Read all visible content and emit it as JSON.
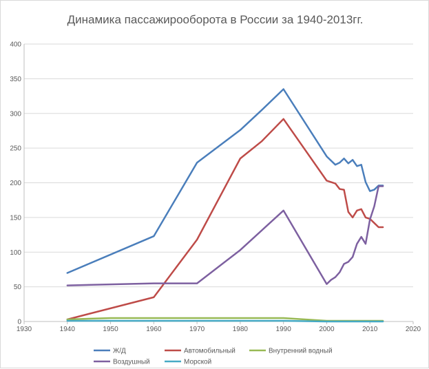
{
  "chart_data": {
    "type": "line",
    "title": "Динамика пассажирооборота в России за 1940-2013гг.",
    "xlabel": "",
    "ylabel": "",
    "xlim": [
      1930,
      2020
    ],
    "ylim": [
      0,
      400
    ],
    "x_ticks": [
      1930,
      1940,
      1950,
      1960,
      1970,
      1980,
      1990,
      2000,
      2010,
      2020
    ],
    "y_ticks": [
      0,
      50,
      100,
      150,
      200,
      250,
      300,
      350,
      400
    ],
    "grid": true,
    "legend_position": "bottom",
    "series": [
      {
        "name": "Ж/Д",
        "color": "#4a7ebb",
        "points": [
          [
            1940,
            70
          ],
          [
            1960,
            123
          ],
          [
            1970,
            229
          ],
          [
            1980,
            276
          ],
          [
            1985,
            305
          ],
          [
            1990,
            335
          ],
          [
            2000,
            238
          ],
          [
            2002,
            226
          ],
          [
            2003,
            229
          ],
          [
            2004,
            235
          ],
          [
            2005,
            228
          ],
          [
            2006,
            233
          ],
          [
            2007,
            224
          ],
          [
            2008,
            226
          ],
          [
            2009,
            201
          ],
          [
            2010,
            188
          ],
          [
            2011,
            190
          ],
          [
            2012,
            196
          ],
          [
            2013,
            196
          ]
        ]
      },
      {
        "name": "Автомобильный",
        "color": "#be4b48",
        "points": [
          [
            1940,
            3
          ],
          [
            1960,
            35
          ],
          [
            1970,
            118
          ],
          [
            1980,
            235
          ],
          [
            1985,
            260
          ],
          [
            1990,
            292
          ],
          [
            2000,
            203
          ],
          [
            2002,
            199
          ],
          [
            2003,
            191
          ],
          [
            2004,
            190
          ],
          [
            2005,
            158
          ],
          [
            2006,
            150
          ],
          [
            2007,
            160
          ],
          [
            2008,
            162
          ],
          [
            2009,
            150
          ],
          [
            2010,
            148
          ],
          [
            2011,
            142
          ],
          [
            2012,
            136
          ],
          [
            2013,
            136
          ]
        ]
      },
      {
        "name": "Внутренний водный",
        "color": "#98b954",
        "points": [
          [
            1940,
            3
          ],
          [
            1950,
            5
          ],
          [
            1960,
            5
          ],
          [
            1970,
            5
          ],
          [
            1980,
            5
          ],
          [
            1990,
            5
          ],
          [
            1995,
            3
          ],
          [
            2000,
            1
          ],
          [
            2005,
            1
          ],
          [
            2010,
            1
          ],
          [
            2013,
            1
          ]
        ]
      },
      {
        "name": "Воздушный",
        "color": "#7d60a0",
        "points": [
          [
            1940,
            52
          ],
          [
            1960,
            55
          ],
          [
            1970,
            55
          ],
          [
            1980,
            103
          ],
          [
            1990,
            160
          ],
          [
            2000,
            54
          ],
          [
            2001,
            60
          ],
          [
            2002,
            64
          ],
          [
            2003,
            71
          ],
          [
            2004,
            83
          ],
          [
            2005,
            86
          ],
          [
            2006,
            93
          ],
          [
            2007,
            112
          ],
          [
            2008,
            122
          ],
          [
            2009,
            112
          ],
          [
            2010,
            147
          ],
          [
            2011,
            166
          ],
          [
            2012,
            195
          ],
          [
            2013,
            195
          ]
        ]
      },
      {
        "name": "Морской",
        "color": "#46aac5",
        "points": [
          [
            1940,
            1
          ],
          [
            1960,
            1
          ],
          [
            1970,
            1
          ],
          [
            1980,
            1
          ],
          [
            1990,
            1
          ],
          [
            2000,
            0
          ],
          [
            2013,
            0
          ]
        ]
      }
    ]
  }
}
